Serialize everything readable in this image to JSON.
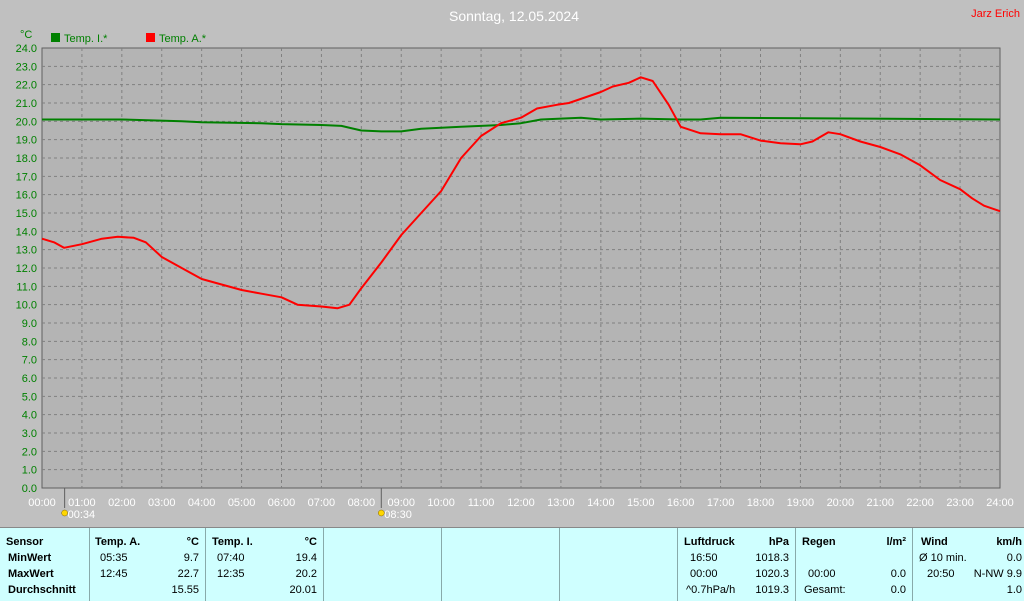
{
  "title": "Sonntag, 12.05.2024",
  "author": "Jarz Erich",
  "chart_data": {
    "type": "line",
    "ylabel": "°C",
    "ylim": [
      0,
      24
    ],
    "y_ticks": [
      "0.0",
      "1.0",
      "2.0",
      "3.0",
      "4.0",
      "5.0",
      "6.0",
      "7.0",
      "8.0",
      "9.0",
      "10.0",
      "11.0",
      "12.0",
      "13.0",
      "14.0",
      "15.0",
      "16.0",
      "17.0",
      "18.0",
      "19.0",
      "20.0",
      "21.0",
      "22.0",
      "23.0",
      "24.0"
    ],
    "xlim": [
      0,
      24
    ],
    "x_ticks": [
      "00:00",
      "01:00",
      "02:00",
      "03:00",
      "04:00",
      "05:00",
      "06:00",
      "07:00",
      "08:00",
      "09:00",
      "10:00",
      "11:00",
      "12:00",
      "13:00",
      "14:00",
      "15:00",
      "16:00",
      "17:00",
      "18:00",
      "19:00",
      "20:00",
      "21:00",
      "22:00",
      "23:00",
      "24:00"
    ],
    "grid": true,
    "legend": "top-left",
    "series": [
      {
        "name": "Temp. I.*",
        "color": "#008000",
        "points": [
          [
            0,
            20.1
          ],
          [
            2,
            20.1
          ],
          [
            3.5,
            20.0
          ],
          [
            4,
            19.95
          ],
          [
            5.5,
            19.9
          ],
          [
            6,
            19.85
          ],
          [
            7,
            19.8
          ],
          [
            7.5,
            19.75
          ],
          [
            8,
            19.5
          ],
          [
            8.5,
            19.45
          ],
          [
            9,
            19.45
          ],
          [
            9.5,
            19.6
          ],
          [
            10,
            19.65
          ],
          [
            10.5,
            19.7
          ],
          [
            11,
            19.75
          ],
          [
            11.5,
            19.8
          ],
          [
            12,
            19.9
          ],
          [
            12.5,
            20.1
          ],
          [
            13,
            20.15
          ],
          [
            13.5,
            20.2
          ],
          [
            14,
            20.1
          ],
          [
            15,
            20.15
          ],
          [
            16,
            20.1
          ],
          [
            16.5,
            20.1
          ],
          [
            17,
            20.2
          ],
          [
            24,
            20.1
          ]
        ]
      },
      {
        "name": "Temp. A.*",
        "color": "#ff0000",
        "points": [
          [
            0,
            13.6
          ],
          [
            0.3,
            13.4
          ],
          [
            0.55,
            13.1
          ],
          [
            1,
            13.3
          ],
          [
            1.5,
            13.6
          ],
          [
            1.9,
            13.7
          ],
          [
            2.3,
            13.65
          ],
          [
            2.6,
            13.4
          ],
          [
            3,
            12.6
          ],
          [
            3.5,
            12.0
          ],
          [
            4,
            11.4
          ],
          [
            4.5,
            11.1
          ],
          [
            5,
            10.8
          ],
          [
            5.5,
            10.6
          ],
          [
            6,
            10.4
          ],
          [
            6.4,
            10.0
          ],
          [
            7,
            9.9
          ],
          [
            7.4,
            9.8
          ],
          [
            7.7,
            10.0
          ],
          [
            8,
            10.9
          ],
          [
            8.5,
            12.3
          ],
          [
            9,
            13.8
          ],
          [
            9.5,
            15.0
          ],
          [
            10,
            16.2
          ],
          [
            10.5,
            18.0
          ],
          [
            11,
            19.2
          ],
          [
            11.5,
            19.9
          ],
          [
            12,
            20.2
          ],
          [
            12.4,
            20.7
          ],
          [
            12.9,
            20.9
          ],
          [
            13.2,
            21.0
          ],
          [
            13.6,
            21.3
          ],
          [
            14,
            21.6
          ],
          [
            14.3,
            21.9
          ],
          [
            14.7,
            22.1
          ],
          [
            15,
            22.4
          ],
          [
            15.3,
            22.2
          ],
          [
            15.7,
            20.9
          ],
          [
            16,
            19.7
          ],
          [
            16.5,
            19.35
          ],
          [
            17,
            19.3
          ],
          [
            17.5,
            19.3
          ],
          [
            18,
            18.95
          ],
          [
            18.5,
            18.8
          ],
          [
            19,
            18.75
          ],
          [
            19.3,
            18.9
          ],
          [
            19.7,
            19.4
          ],
          [
            20,
            19.3
          ],
          [
            20.5,
            18.9
          ],
          [
            21,
            18.6
          ],
          [
            21.5,
            18.2
          ],
          [
            22,
            17.6
          ],
          [
            22.5,
            16.8
          ],
          [
            23,
            16.3
          ],
          [
            23.3,
            15.8
          ],
          [
            23.6,
            15.4
          ],
          [
            24,
            15.1
          ]
        ],
        "note_x_scale": "x values in hours"
      }
    ],
    "sun_markers": [
      {
        "label": "00:34",
        "x": 0.567
      },
      {
        "label": "08:30",
        "x": 8.5
      }
    ]
  },
  "table": {
    "sensor": {
      "header": "Sensor",
      "rows": [
        "MinWert",
        "MaxWert",
        "Durchschnitt"
      ]
    },
    "temp_a": {
      "header": "Temp. A.",
      "unit": "°C",
      "times": [
        "05:35",
        "12:45",
        ""
      ],
      "values": [
        "9.7",
        "22.7",
        "15.55"
      ]
    },
    "temp_i": {
      "header": "Temp. I.",
      "unit": "°C",
      "times": [
        "07:40",
        "12:35",
        ""
      ],
      "values": [
        "19.4",
        "20.2",
        "20.01"
      ]
    },
    "luftdruck": {
      "header": "Luftdruck",
      "unit": "hPa",
      "times": [
        "16:50",
        "00:00",
        "^0.7hPa/h"
      ],
      "values": [
        "1018.3",
        "1020.3",
        "1019.3"
      ]
    },
    "regen": {
      "header": "Regen",
      "unit": "l/m²",
      "times": [
        "",
        "00:00",
        "Gesamt:"
      ],
      "values": [
        "",
        "0.0",
        "0.0"
      ]
    },
    "wind": {
      "header": "Wind",
      "unit": "km/h",
      "times": [
        "Ø 10 min.",
        "20:50",
        ""
      ],
      "values": [
        "0.0",
        "N-NW 9.9",
        "1.0"
      ]
    }
  }
}
